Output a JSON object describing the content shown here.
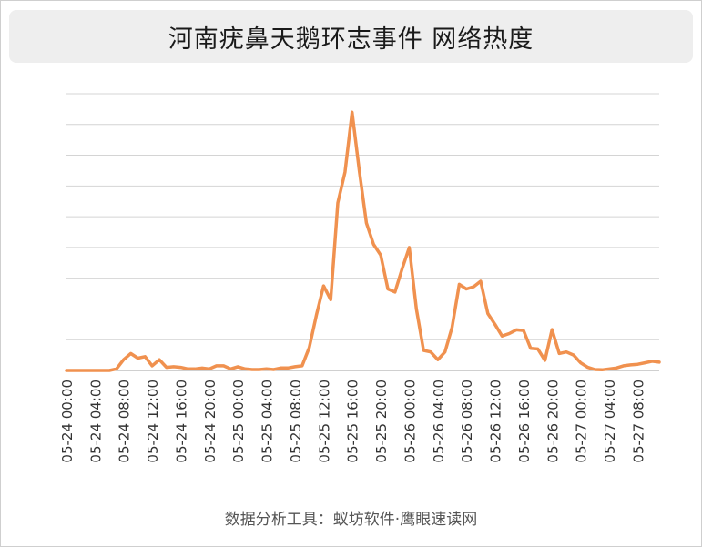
{
  "title": "河南疣鼻天鹅环志事件 网络热度",
  "footer": "数据分析工具：蚁坊软件·鹰眼速读网",
  "line_color": "#f0914f",
  "chart_data": {
    "type": "line",
    "title": "河南疣鼻天鹅环志事件 网络热度",
    "xlabel": "",
    "ylabel": "",
    "ylim": [
      0,
      9
    ],
    "y_ticks_labeled": false,
    "grid": true,
    "tick_labels": [
      "05-24 00:00",
      "05-24 04:00",
      "05-24 08:00",
      "05-24 12:00",
      "05-24 16:00",
      "05-24 20:00",
      "05-25 00:00",
      "05-25 04:00",
      "05-25 08:00",
      "05-25 12:00",
      "05-25 16:00",
      "05-25 20:00",
      "05-26 00:00",
      "05-26 04:00",
      "05-26 08:00",
      "05-26 12:00",
      "05-26 16:00",
      "05-26 20:00",
      "05-27 00:00",
      "05-27 04:00",
      "05-27 08:00"
    ],
    "hours_per_point": 1,
    "values": [
      0,
      0,
      0,
      0,
      0,
      0,
      0,
      0.05,
      0.35,
      0.55,
      0.4,
      0.45,
      0.15,
      0.35,
      0.1,
      0.12,
      0.1,
      0.05,
      0.05,
      0.08,
      0.05,
      0.15,
      0.15,
      0.05,
      0.12,
      0.05,
      0.03,
      0.03,
      0.05,
      0.03,
      0.08,
      0.08,
      0.12,
      0.15,
      0.75,
      1.8,
      2.75,
      2.3,
      5.45,
      6.45,
      8.4,
      6.5,
      4.8,
      4.1,
      3.75,
      2.65,
      2.55,
      3.3,
      4.0,
      2.0,
      0.65,
      0.6,
      0.35,
      0.6,
      1.4,
      2.8,
      2.65,
      2.72,
      2.9,
      1.85,
      1.5,
      1.12,
      1.2,
      1.32,
      1.3,
      0.72,
      0.7,
      0.33,
      1.33,
      0.55,
      0.6,
      0.5,
      0.25,
      0.1,
      0.03,
      0.02,
      0.05,
      0.08,
      0.15,
      0.18,
      0.2,
      0.25,
      0.3,
      0.27
    ]
  }
}
